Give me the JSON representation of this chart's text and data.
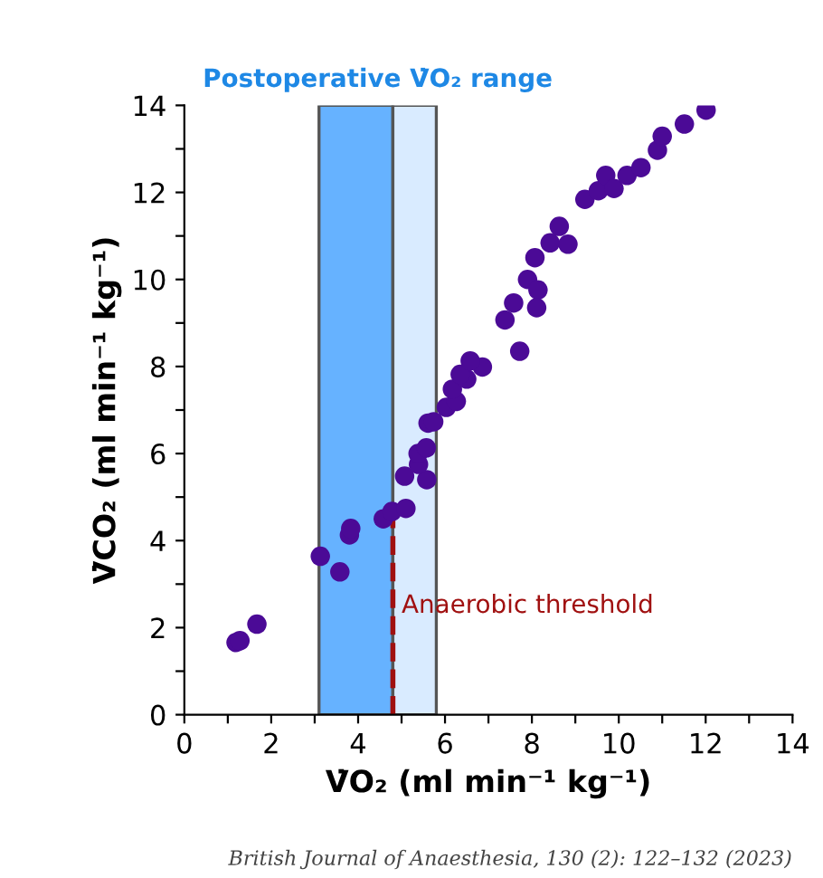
{
  "chart_data": {
    "type": "scatter",
    "xlabel": "V̇O₂ (ml min⁻¹ kg⁻¹)",
    "ylabel": "V̇CO₂ (ml min⁻¹ kg⁻¹)",
    "annotations": [
      "Postoperative V̇O₂ range",
      {
        "text": "Anaerobic threshold",
        "x": 5.0,
        "y": 2.5
      },
      "British Journal of Anaesthesia, 130 (2): 122–132 (2023)"
    ],
    "xlim": [
      0,
      14
    ],
    "ylim": [
      0,
      14
    ],
    "xticks": [
      0,
      {
        "value": 1,
        "label": null
      },
      2,
      {
        "value": 3,
        "label": null
      },
      4,
      {
        "value": 5,
        "label": null
      },
      6,
      {
        "value": 7,
        "label": null
      },
      8,
      {
        "value": 9,
        "label": null
      },
      10,
      {
        "value": 11,
        "label": null
      },
      12,
      {
        "value": 13,
        "label": null
      },
      14
    ],
    "yticks": [
      0,
      {
        "value": 1,
        "label": null
      },
      2,
      {
        "value": 3,
        "label": null
      },
      4,
      {
        "value": 5,
        "label": null
      },
      6,
      {
        "value": 7,
        "label": null
      },
      8,
      {
        "value": 9,
        "label": null
      },
      10,
      {
        "value": 11,
        "label": null
      },
      12,
      {
        "value": 13,
        "label": null
      },
      14
    ],
    "bands": [
      {
        "axis": "x",
        "from": 3.1,
        "to": 4.8,
        "color": "#66b2ff"
      },
      {
        "axis": "x",
        "from": 4.8,
        "to": 5.8,
        "color": "#d9ebff"
      }
    ],
    "grid": false,
    "legend": false,
    "marker": "circle",
    "series": [
      {
        "color": "#4b0a96",
        "x": [
          1.19,
          1.28,
          1.67,
          3.13,
          3.58,
          3.8,
          3.83,
          4.58,
          4.78,
          5.1,
          5.07,
          5.58,
          5.39,
          5.38,
          5.57,
          5.61,
          5.74,
          6.03,
          6.26,
          6.17,
          6.5,
          6.35,
          6.86,
          6.58,
          7.72,
          7.38,
          7.58,
          7.9,
          8.14,
          8.11,
          8.07,
          8.42,
          8.63,
          8.83,
          9.22,
          9.53,
          9.7,
          9.89,
          10.19,
          10.51,
          10.89,
          11.0,
          11.51,
          12.01
        ],
        "values": [
          1.66,
          1.7,
          2.08,
          3.64,
          3.28,
          4.13,
          4.28,
          4.5,
          4.67,
          4.74,
          5.48,
          5.4,
          5.75,
          6.0,
          6.13,
          6.7,
          6.73,
          7.06,
          7.2,
          7.48,
          7.71,
          7.82,
          7.99,
          8.13,
          8.35,
          9.07,
          9.46,
          10.0,
          9.76,
          9.35,
          10.5,
          10.84,
          11.22,
          10.81,
          11.84,
          12.04,
          12.39,
          12.09,
          12.39,
          12.57,
          12.97,
          13.29,
          13.57,
          13.89
        ]
      },
      {
        "type": "line",
        "color": "#a01010",
        "line_style": "dashed",
        "marker": "none",
        "x": [
          4.8,
          4.8
        ],
        "values": [
          0,
          4.6
        ]
      }
    ]
  }
}
